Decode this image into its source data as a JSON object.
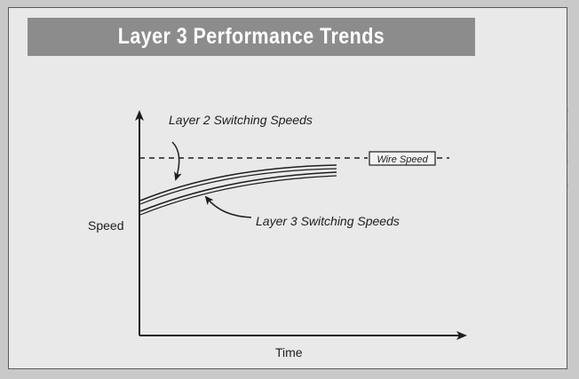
{
  "title": "Layer 3 Performance Trends",
  "diagram": {
    "y_axis_label": "Speed",
    "x_axis_label": "Time",
    "reference_line_label": "Wire Speed",
    "curve_labels": {
      "layer2": "Layer 2 Switching Speeds",
      "layer3": "Layer 3 Switching Speeds"
    }
  },
  "colors": {
    "frame_background": "#e9e9e9",
    "title_background": "#8c8c8c",
    "title_text": "#ffffff",
    "ink": "#1e1e1e"
  }
}
